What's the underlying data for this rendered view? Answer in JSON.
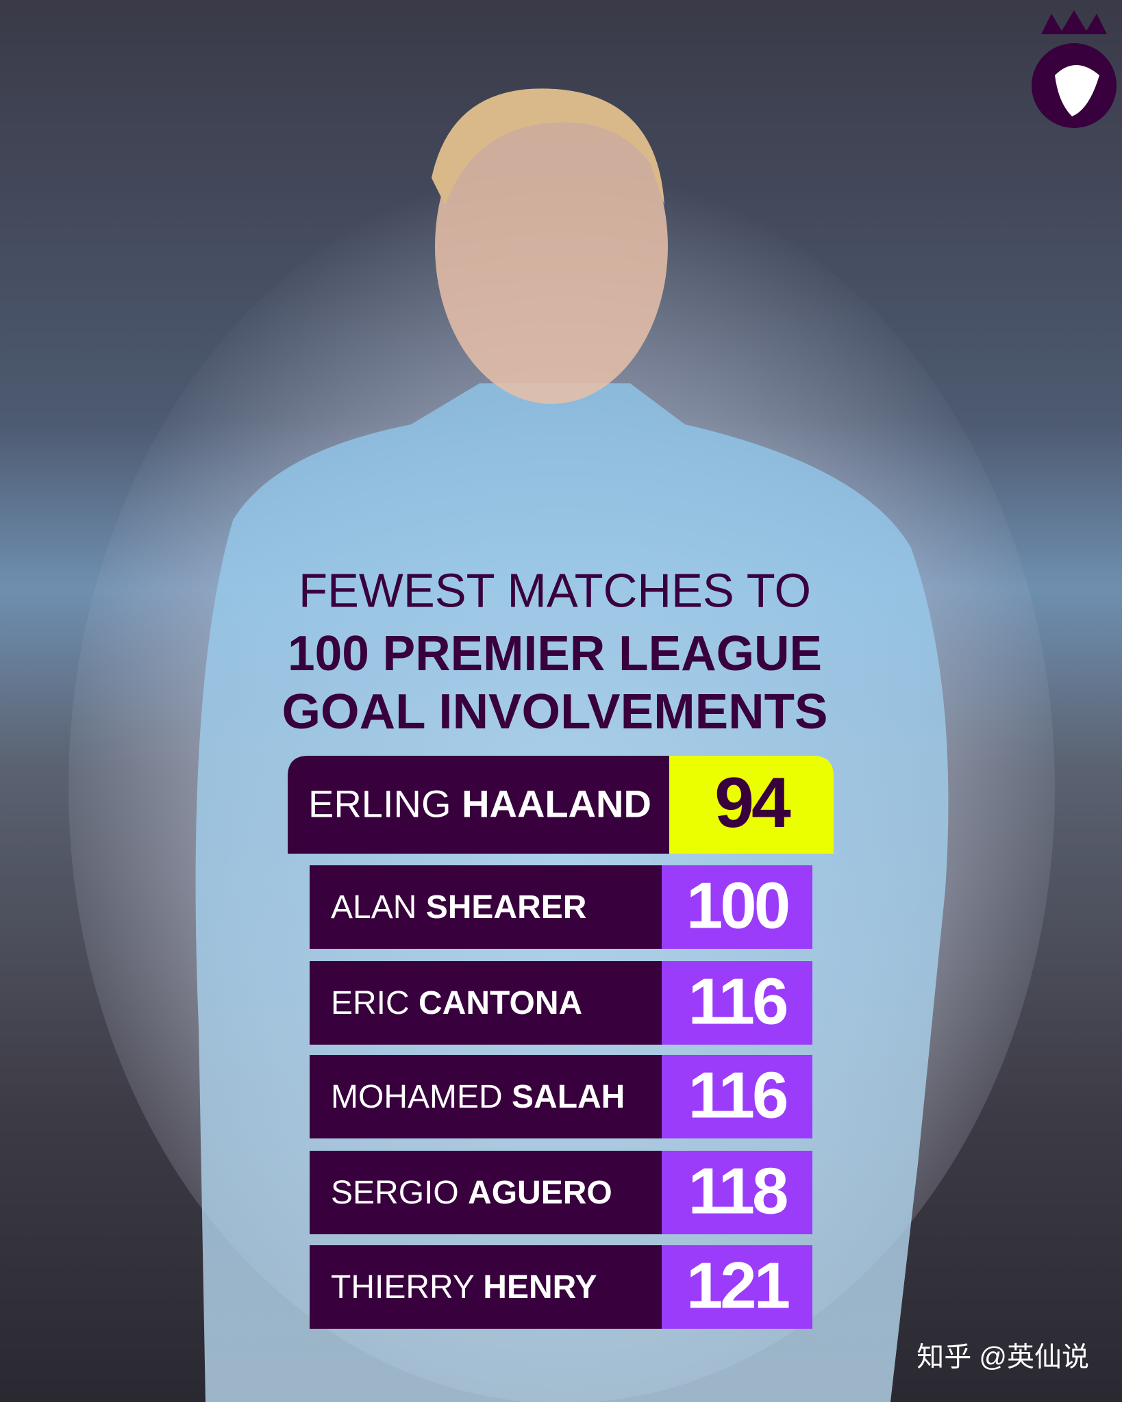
{
  "header": {
    "title_lines": [
      "FEWEST MATCHES TO",
      "100 PREMIER LEAGUE",
      "GOAL INVOLVEMENTS"
    ]
  },
  "rows": [
    {
      "first_name": "ERLING",
      "last_name": "HAALAND",
      "matches": 94
    },
    {
      "first_name": "ALAN",
      "last_name": "SHEARER",
      "matches": 100
    },
    {
      "first_name": "ERIC",
      "last_name": "CANTONA",
      "matches": 116
    },
    {
      "first_name": "MOHAMED",
      "last_name": "SALAH",
      "matches": 116
    },
    {
      "first_name": "SERGIO",
      "last_name": "AGUERO",
      "matches": 118
    },
    {
      "first_name": "THIERRY",
      "last_name": "HENRY",
      "matches": 121
    }
  ],
  "watermark": "知乎 @英仙说"
}
